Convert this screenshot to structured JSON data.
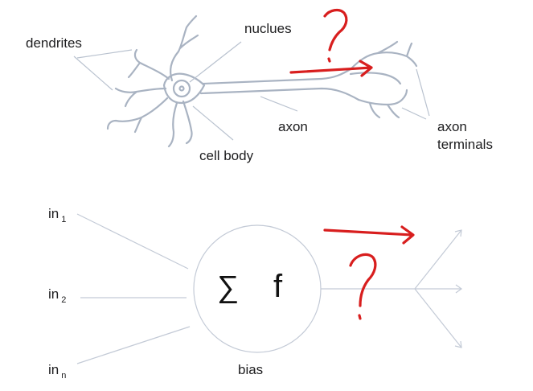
{
  "neuron": {
    "labels": {
      "dendrites": "dendrites",
      "nucleus": "nuclues",
      "axon": "axon",
      "cell_body": "cell body",
      "axon_terminals_line1": "axon",
      "axon_terminals_line2": "terminals"
    }
  },
  "perceptron": {
    "inputs": [
      {
        "base": "in",
        "sub": "1"
      },
      {
        "base": "in",
        "sub": "2"
      },
      {
        "base": "in",
        "sub": "n"
      }
    ],
    "sum_symbol": "∑",
    "activation_symbol": "f",
    "bias_label": "bias"
  },
  "annotations": {
    "question_mark": "?",
    "ink_color": "#d81e1e"
  },
  "colors": {
    "neuron_outline": "#a9b3c2",
    "leader_line": "#b9c2cf",
    "perceptron_line": "#c3cad6",
    "text": "#1d1d1f"
  }
}
